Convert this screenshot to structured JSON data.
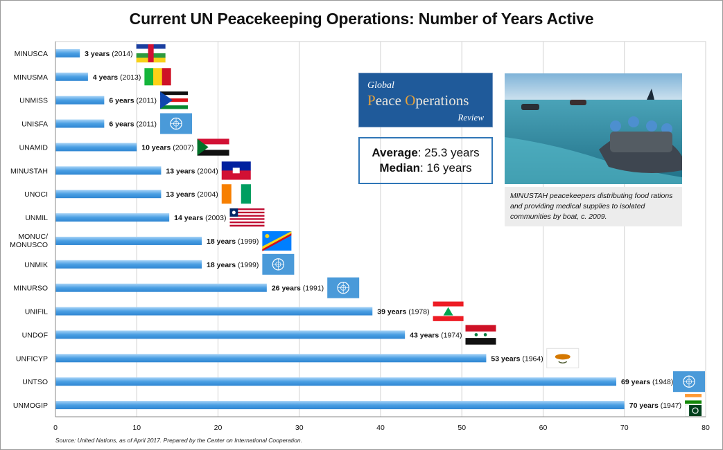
{
  "title": "Current UN Peacekeeping Operations: Number of Years Active",
  "logo": {
    "line1": "Global",
    "line2a": "P",
    "line2b": "eace ",
    "line2c": "O",
    "line2d": "perations",
    "line3": "Review"
  },
  "stats": {
    "average_label": "Average",
    "average_value": ": 25.3 years",
    "median_label": "Median",
    "median_value": ": 16 years"
  },
  "caption": "MINUSTAH peacekeepers distributing food rations and providing medical supplies to isolated communities by boat, c. 2009.",
  "source": "Source: United Nations, as of April 2017. Prepared by the Center on International Cooperation.",
  "colors": {
    "bar": "#4a9fe3",
    "bar_light": "#a9d4f7",
    "grid": "#d0d0d0",
    "un_blue": "#4a9ad9"
  },
  "chart_data": {
    "type": "bar",
    "orientation": "horizontal",
    "title": "Current UN Peacekeeping Operations: Number of Years Active",
    "categories": [
      "MINUSCA",
      "MINUSMA",
      "UNMISS",
      "UNISFA",
      "UNAMID",
      "MINUSTAH",
      "UNOCI",
      "UNMIL",
      "MONUC/ MONUSCO",
      "UNMIK",
      "MINURSO",
      "UNIFIL",
      "UNDOF",
      "UNFICYP",
      "UNTSO",
      "UNMOGIP"
    ],
    "values": [
      3,
      4,
      6,
      6,
      10,
      13,
      13,
      14,
      18,
      18,
      26,
      39,
      43,
      53,
      69,
      70
    ],
    "start_years": [
      2014,
      2013,
      2011,
      2011,
      2007,
      2004,
      2004,
      2003,
      1999,
      1999,
      1991,
      1978,
      1974,
      1964,
      1948,
      1947
    ],
    "data_labels": [
      {
        "bold": "3 years",
        "rest": " (2014)"
      },
      {
        "bold": "4 years",
        "rest": " (2013)"
      },
      {
        "bold": "6 years",
        "rest": " (2011)"
      },
      {
        "bold": "6 years",
        "rest": " (2011)"
      },
      {
        "bold": "10 years",
        "rest": " (2007)"
      },
      {
        "bold": "13 years",
        "rest": " (2004)"
      },
      {
        "bold": "13 years",
        "rest": " (2004)"
      },
      {
        "bold": "14 years",
        "rest": " (2003)"
      },
      {
        "bold": "18 years",
        "rest": " (1999)"
      },
      {
        "bold": "18 years",
        "rest": " (1999)"
      },
      {
        "bold": "26 years",
        "rest": " (1991)"
      },
      {
        "bold": "39 years",
        "rest": " (1978)"
      },
      {
        "bold": "43 years",
        "rest": " (1974)"
      },
      {
        "bold": "53 years",
        "rest": " (1964)"
      },
      {
        "bold": "69 years",
        "rest": " (1948)"
      },
      {
        "bold": "70 years",
        "rest": " (1947)"
      }
    ],
    "flags": [
      "central-african-republic",
      "mali",
      "south-sudan",
      "un",
      "sudan",
      "haiti",
      "cote-divoire",
      "liberia",
      "dr-congo",
      "un",
      "un",
      "lebanon",
      "syria",
      "cyprus",
      "un",
      "india-pakistan"
    ],
    "xlim": [
      0,
      80
    ],
    "xticks": [
      0,
      10,
      20,
      30,
      40,
      50,
      60,
      70,
      80
    ],
    "grid": true,
    "legend": "none"
  }
}
